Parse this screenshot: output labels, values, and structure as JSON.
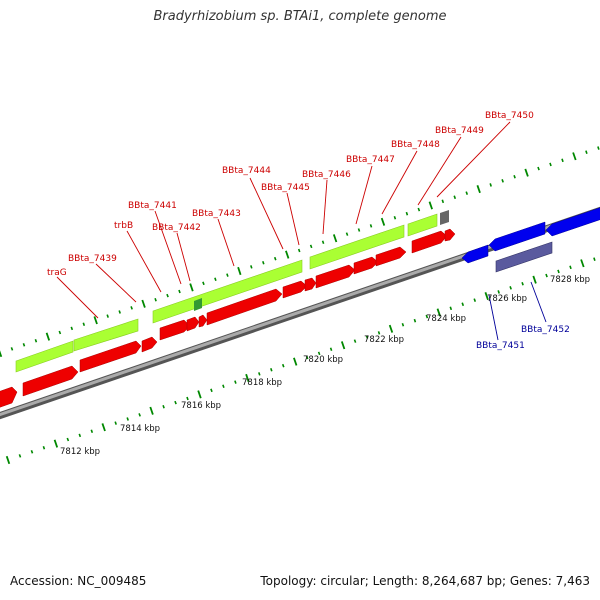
{
  "title": "Bradyrhizobium sp. BTAi1, complete genome",
  "footer": {
    "accession": "Accession: NC_009485",
    "summary": "Topology: circular; Length: 8,264,687 bp; Genes: 7,463"
  },
  "colors": {
    "forward_gene": "#ff0000",
    "reverse_gene": "#0000ff",
    "forward_cds": "#aaff33",
    "reverse_cds": "#555599",
    "backbone": "#888888",
    "tick": "#008800",
    "label_forward": "#cc0000",
    "label_reverse": "#000099"
  },
  "kbp_labels": [
    "7812 kbp",
    "7814 kbp",
    "7816 kbp",
    "7818 kbp",
    "7820 kbp",
    "7822 kbp",
    "7824 kbp",
    "7826 kbp",
    "7828 kbp"
  ],
  "forward_gene_labels": [
    "traG",
    "BBta_7439",
    "trbB",
    "BBta_7441",
    "BBta_7442",
    "BBta_7443",
    "BBta_7444",
    "BBta_7445",
    "BBta_7446",
    "BBta_7447",
    "BBta_7448",
    "BBta_7449",
    "BBta_7450"
  ],
  "reverse_gene_labels": [
    "BBta_7451",
    "BBta_7452"
  ]
}
